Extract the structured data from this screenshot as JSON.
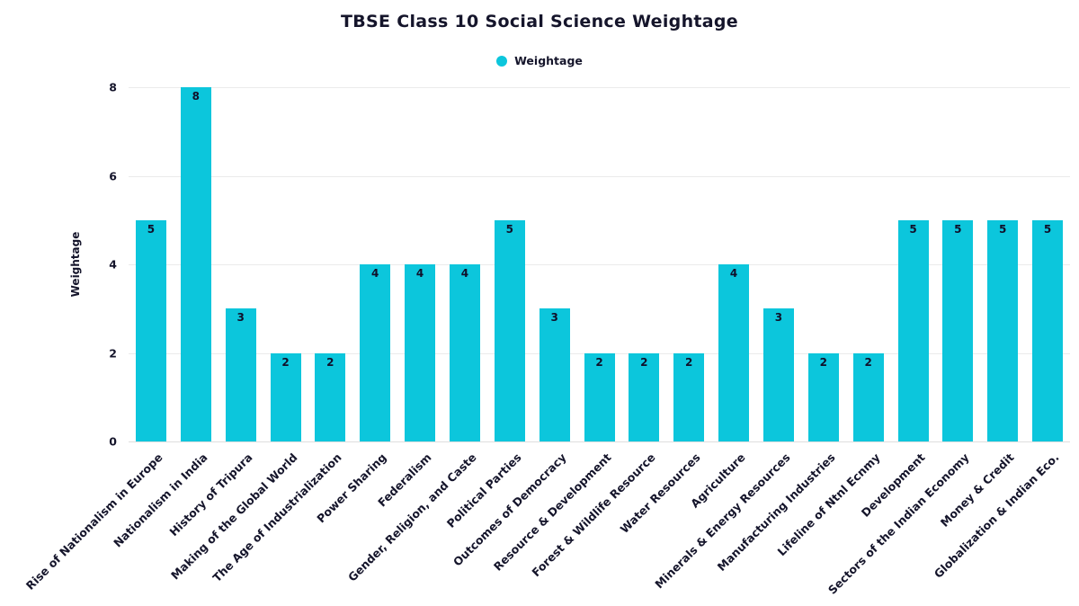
{
  "chart_data": {
    "type": "bar",
    "title": "TBSE Class 10 Social Science Weightage",
    "legend": {
      "label": "Weightage",
      "position": "top-center"
    },
    "xlabel": "",
    "ylabel": "Weightage",
    "ylim": [
      0,
      8
    ],
    "yticks": [
      0,
      2,
      4,
      6,
      8
    ],
    "grid": true,
    "bar_color": "#0cc6dc",
    "categories": [
      "Rise of Nationalism in Europe",
      "Nationalism in India",
      "History of Tripura",
      "Making of the Global World",
      "The Age of Industrialization",
      "Power Sharing",
      "Federalism",
      "Gender, Religion, and Caste",
      "Political Parties",
      "Outcomes of Democracy",
      "Resource & Development",
      "Forest & Wildlife Resource",
      "Water Resources",
      "Agriculture",
      "Minerals & Energy Resources",
      "Manufacturing Industries",
      "Lifeline of Ntnl Ecnmy",
      "Development",
      "Sectors of the Indian Economy",
      "Money & Credit",
      "Globalization & Indian Eco."
    ],
    "values": [
      5,
      8,
      3,
      2,
      2,
      4,
      4,
      4,
      5,
      3,
      2,
      2,
      2,
      4,
      3,
      2,
      2,
      5,
      5,
      5,
      5
    ]
  }
}
